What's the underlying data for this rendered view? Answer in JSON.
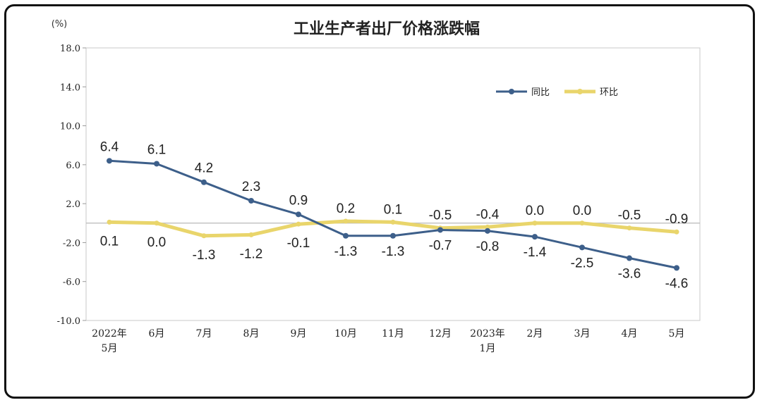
{
  "chart_data": {
    "type": "line",
    "title": "工业生产者出厂价格涨跌幅",
    "unit": "(%)",
    "categories": [
      [
        "2022年",
        "5月"
      ],
      [
        "6月"
      ],
      [
        "7月"
      ],
      [
        "8月"
      ],
      [
        "9月"
      ],
      [
        "10月"
      ],
      [
        "11月"
      ],
      [
        "12月"
      ],
      [
        "2023年",
        "1月"
      ],
      [
        "2月"
      ],
      [
        "3月"
      ],
      [
        "4月"
      ],
      [
        "5月"
      ]
    ],
    "y_ticks": [
      "18.0",
      "14.0",
      "10.0",
      "6.0",
      "2.0",
      "-2.0",
      "-6.0",
      "-10.0"
    ],
    "ylim": [
      -10,
      18
    ],
    "grid": false,
    "legend_position": "top-right",
    "series": [
      {
        "name": "同比",
        "color": "#3d5f8a",
        "values": [
          6.4,
          6.1,
          4.2,
          2.3,
          0.9,
          -1.3,
          -1.3,
          -0.7,
          -0.8,
          -1.4,
          -2.5,
          -3.6,
          -4.6
        ],
        "labels": [
          "6.4",
          "6.1",
          "4.2",
          "2.3",
          "0.9",
          "-1.3",
          "-1.3",
          "-0.7",
          "-0.8",
          "-1.4",
          "-2.5",
          "-3.6",
          "-4.6"
        ]
      },
      {
        "name": "环比",
        "color": "#e9d56b",
        "values": [
          0.1,
          0.0,
          -1.3,
          -1.2,
          -0.1,
          0.2,
          0.1,
          -0.5,
          -0.4,
          0.0,
          0.0,
          -0.5,
          -0.9
        ],
        "labels": [
          "0.1",
          "0.0",
          "-1.3",
          "-1.2",
          "-0.1",
          "0.2",
          "0.1",
          "-0.5",
          "-0.4",
          "0.0",
          "0.0",
          "-0.5",
          "-0.9"
        ]
      }
    ]
  }
}
